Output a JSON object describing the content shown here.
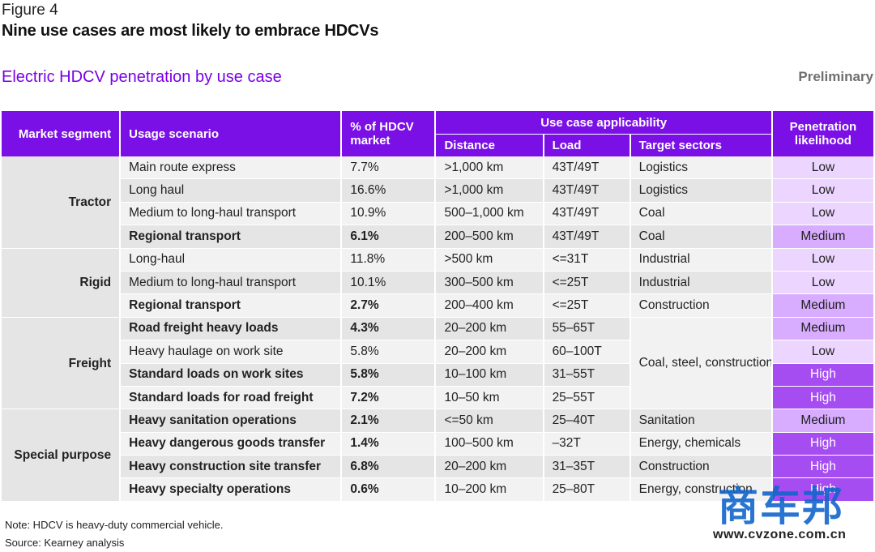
{
  "figure": {
    "label": "Figure 4",
    "title": "Nine use cases are most likely to embrace HDCVs",
    "subtitle": "Electric HDCV penetration by use case",
    "status": "Preliminary"
  },
  "table": {
    "headers": {
      "segment": "Market segment",
      "scenario": "Usage scenario",
      "share": "% of HDCV market",
      "applicability": "Use case applicability",
      "distance": "Distance",
      "load": "Load",
      "sectors": "Target sectors",
      "penetration": "Penetration likelihood"
    },
    "segments": [
      "Tractor",
      "Rigid",
      "Freight",
      "Special purpose"
    ],
    "rows": [
      {
        "scenario": "Main route express",
        "share": "7.7%",
        "distance": ">1,000 km",
        "load": "43T/49T",
        "sectors": "Logistics",
        "penetration": "Low"
      },
      {
        "scenario": "Long haul",
        "share": "16.6%",
        "distance": ">1,000 km",
        "load": "43T/49T",
        "sectors": "Logistics",
        "penetration": "Low"
      },
      {
        "scenario": "Medium to long-haul transport",
        "share": "10.9%",
        "distance": "500–1,000 km",
        "load": "43T/49T",
        "sectors": "Coal",
        "penetration": "Low"
      },
      {
        "scenario": "Regional transport",
        "share": "6.1%",
        "distance": "200–500 km",
        "load": "43T/49T",
        "sectors": "Coal",
        "penetration": "Medium"
      },
      {
        "scenario": "Long-haul",
        "share": "11.8%",
        "distance": ">500 km",
        "load": "<=31T",
        "sectors": "Industrial",
        "penetration": "Low"
      },
      {
        "scenario": "Medium to long-haul transport",
        "share": "10.1%",
        "distance": "300–500 km",
        "load": "<=25T",
        "sectors": "Industrial",
        "penetration": "Low"
      },
      {
        "scenario": "Regional transport",
        "share": "2.7%",
        "distance": "200–400 km",
        "load": "<=25T",
        "sectors": "Construction",
        "penetration": "Medium"
      },
      {
        "scenario": "Road freight heavy loads",
        "share": "4.3%",
        "distance": "20–200 km",
        "load": "55–65T",
        "sectors": "Coal, steel, construction, mining",
        "penetration": "Medium"
      },
      {
        "scenario": "Heavy haulage on work site",
        "share": "5.8%",
        "distance": "20–200 km",
        "load": "60–100T",
        "sectors": "",
        "penetration": "Low"
      },
      {
        "scenario": "Standard loads on work sites",
        "share": "5.8%",
        "distance": "10–100 km",
        "load": "31–55T",
        "sectors": "",
        "penetration": "High"
      },
      {
        "scenario": "Standard loads for road freight",
        "share": "7.2%",
        "distance": "10–50 km",
        "load": "25–55T",
        "sectors": "",
        "penetration": "High"
      },
      {
        "scenario": "Heavy sanitation operations",
        "share": "2.1%",
        "distance": "<=50 km",
        "load": "25–40T",
        "sectors": "Sanitation",
        "penetration": "Medium"
      },
      {
        "scenario": "Heavy dangerous goods transfer",
        "share": "1.4%",
        "distance": "100–500 km",
        "load": "–32T",
        "sectors": "Energy, chemicals",
        "penetration": "High"
      },
      {
        "scenario": "Heavy construction site transfer",
        "share": "6.8%",
        "distance": "20–200 km",
        "load": "31–35T",
        "sectors": "Construction",
        "penetration": "High"
      },
      {
        "scenario": "Heavy specialty operations",
        "share": "0.6%",
        "distance": "10–200 km",
        "load": "25–80T",
        "sectors": "Energy, construction",
        "penetration": "High"
      }
    ]
  },
  "notes": {
    "note": "Note: HDCV is heavy-duty commercial vehicle.",
    "source": "Source: Kearney analysis"
  },
  "watermark": {
    "logo_text": "商车邦",
    "url": "www.cvzone.com.cn"
  }
}
